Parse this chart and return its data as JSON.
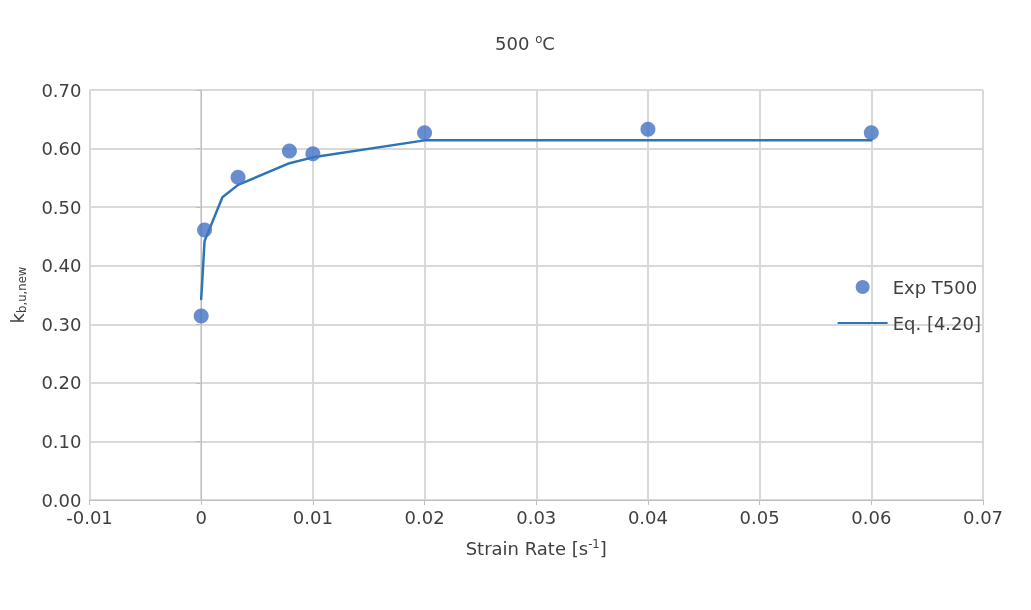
{
  "chart_data": {
    "type": "scatter",
    "title": "500 $^{o}$C",
    "xlabel": "Strain Rate [s$^{-1}$]",
    "ylabel": "k$_{b,u,new}$",
    "xlim": [
      -0.01,
      0.07
    ],
    "xticks": [
      -0.01,
      0,
      0.01,
      0.02,
      0.03,
      0.04,
      0.05,
      0.06,
      0.07
    ],
    "ylim": [
      0,
      0.7
    ],
    "yticks": [
      {
        "value": 0,
        "label": "0.00"
      },
      {
        "value": 0.1,
        "label": "0.10"
      },
      {
        "value": 0.2,
        "label": "0.20"
      },
      {
        "value": 0.3,
        "label": "0.30"
      },
      {
        "value": 0.4,
        "label": "0.40"
      },
      {
        "value": 0.5,
        "label": "0.50"
      },
      {
        "value": 0.6,
        "label": "0.60"
      },
      {
        "value": 0.7,
        "label": "0.70"
      }
    ],
    "grid": true,
    "legend": "right",
    "series": [
      {
        "name": "Exp T500",
        "marker": "circle",
        "color": "#4472c4",
        "x": [
          0,
          0.0003,
          0.0033,
          0.0079,
          0.01,
          0.02,
          0.04,
          0.06
        ],
        "values": [
          0.314,
          0.461,
          0.551,
          0.596,
          0.591,
          0.627,
          0.633,
          0.627
        ]
      },
      {
        "name": "Eq. [4.20]",
        "type": "line",
        "marker": "none",
        "line_style": "solid",
        "color": "#2e75b6",
        "x": [
          0,
          0.0003,
          0.0019,
          0.0033,
          0.0079,
          0.01,
          0.02,
          0.06
        ],
        "values": [
          0.343,
          0.442,
          0.517,
          0.538,
          0.575,
          0.585,
          0.614,
          0.614
        ]
      }
    ]
  }
}
